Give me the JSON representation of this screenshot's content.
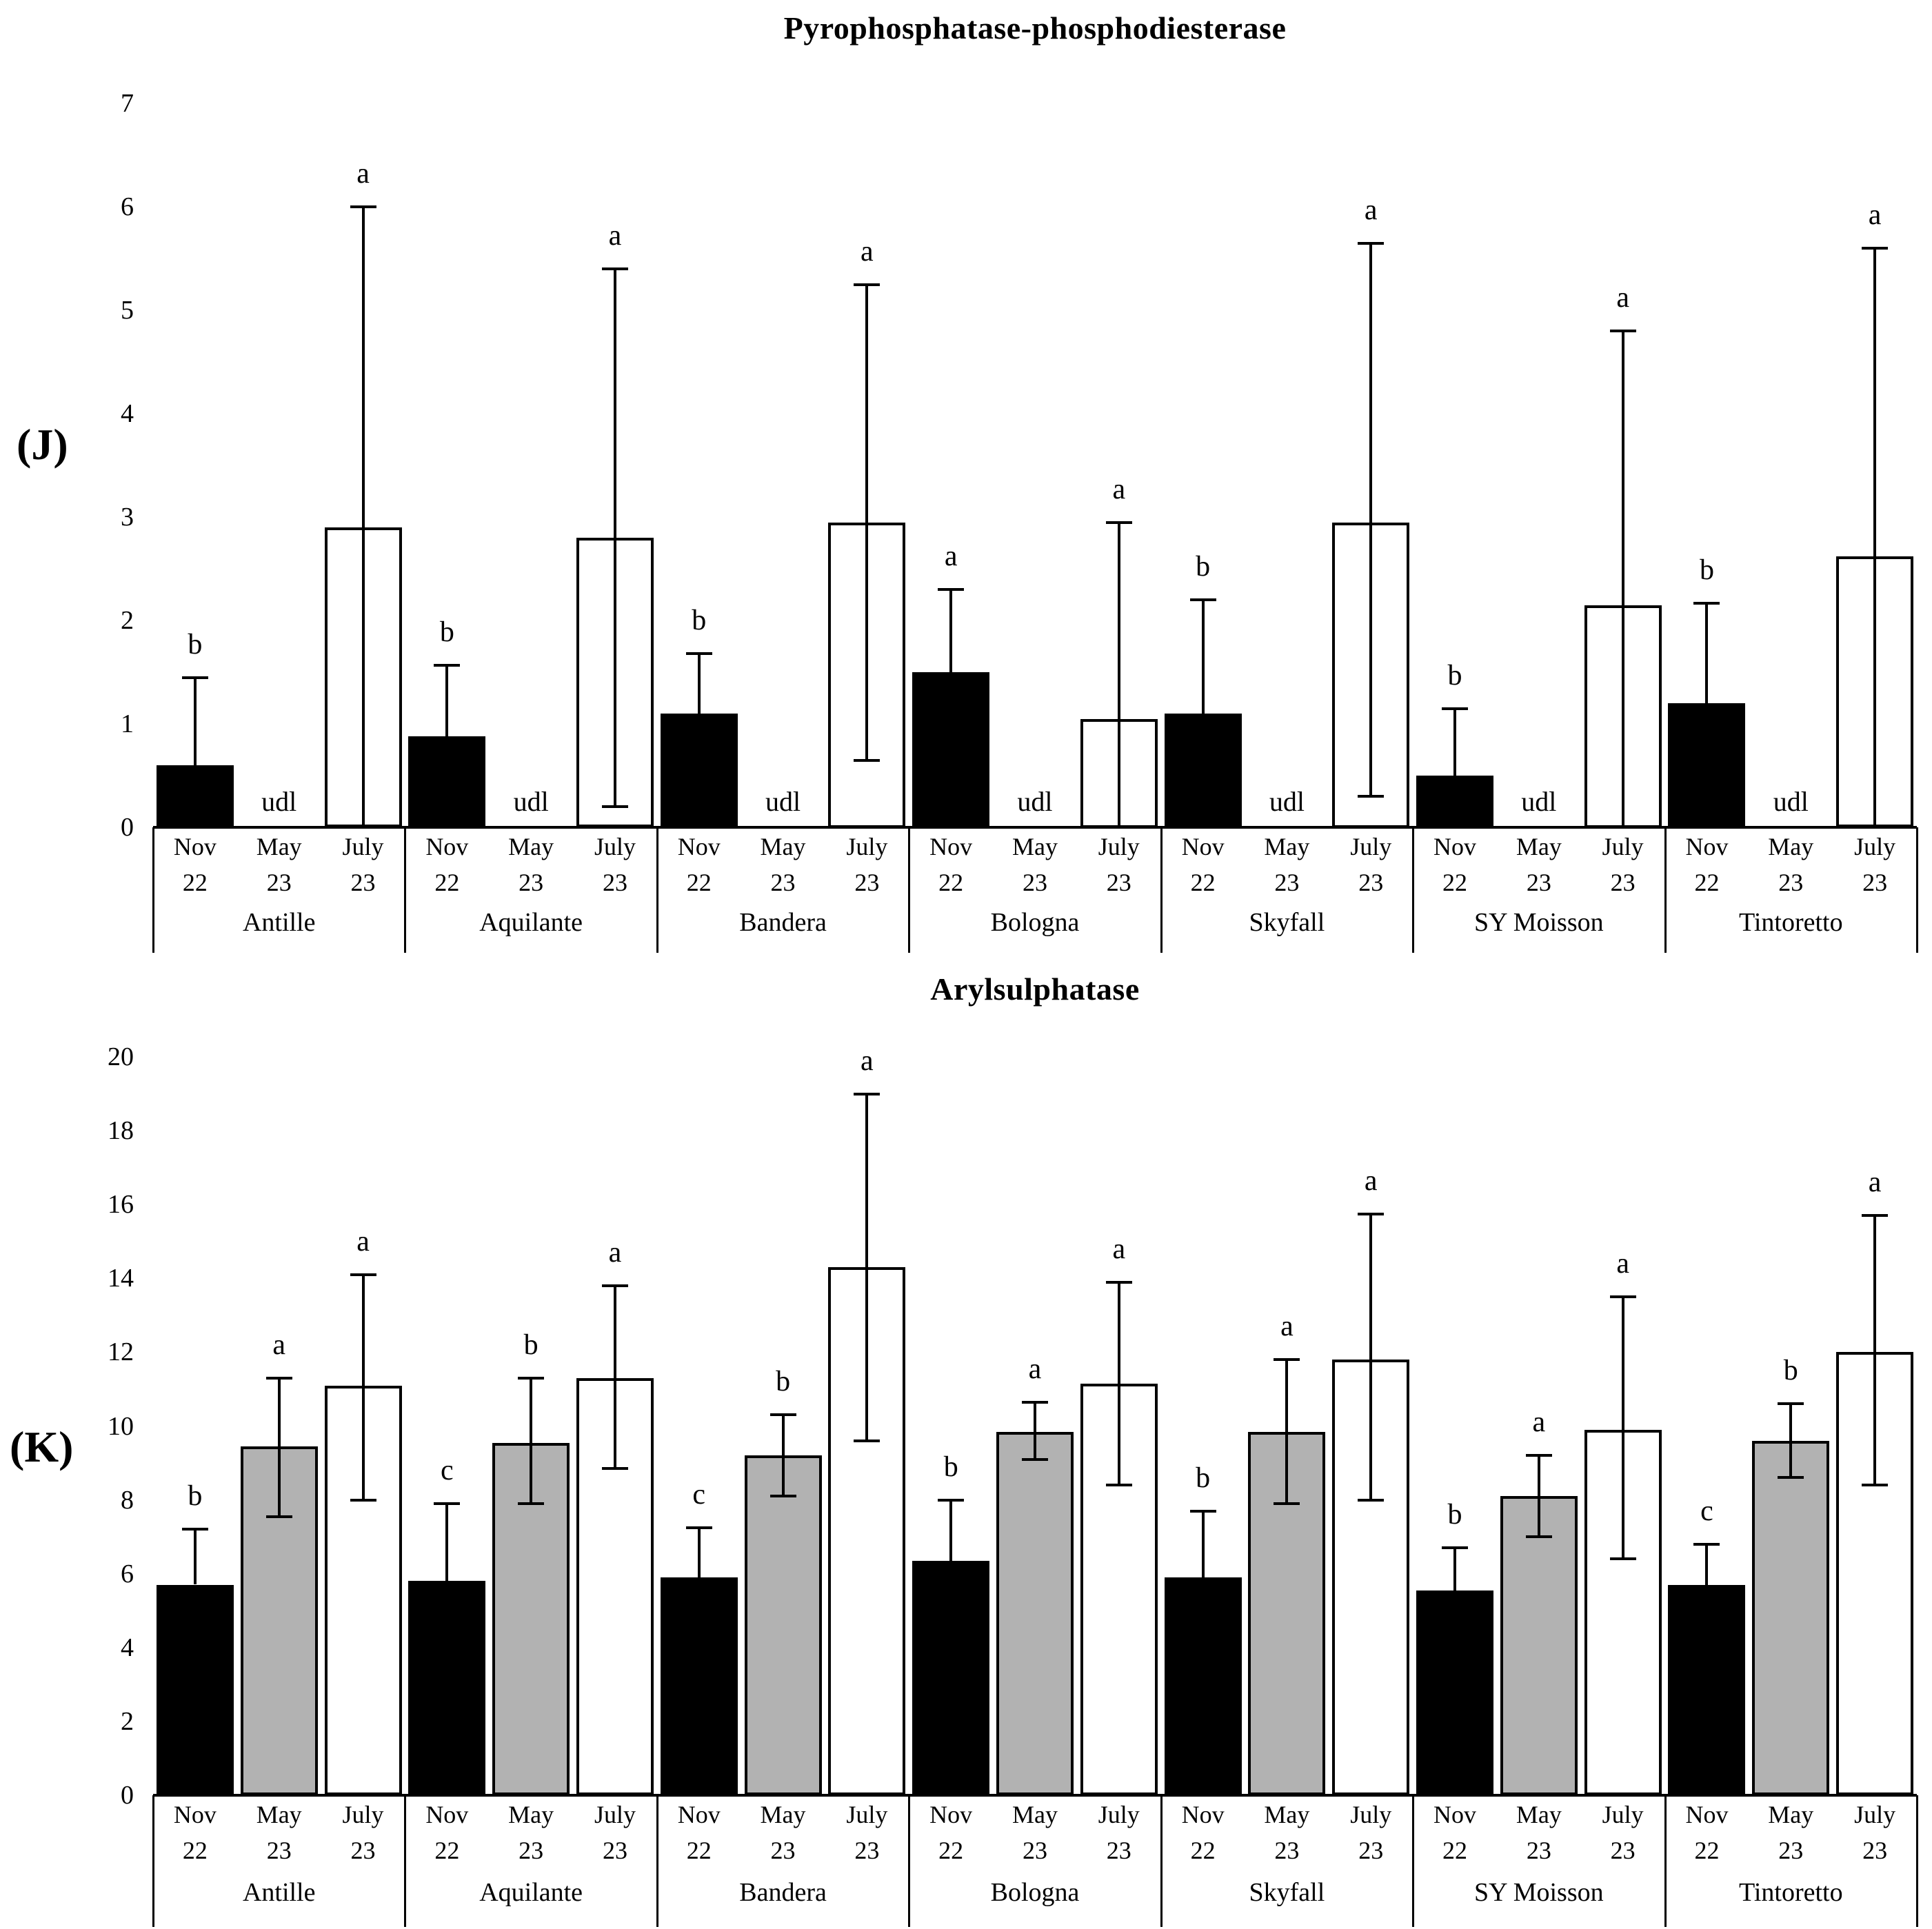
{
  "figure": {
    "background": "#ffffff",
    "ink_color": "#000000",
    "bar_fills": {
      "nov": "#000000",
      "may": "#b2b2b2",
      "july": "#ffffff"
    },
    "udl_label": "udl"
  },
  "months": [
    {
      "line1": "Nov",
      "line2": "22"
    },
    {
      "line1": "May",
      "line2": "23"
    },
    {
      "line1": "July",
      "line2": "23"
    }
  ],
  "cultivars": [
    "Antille",
    "Aquilante",
    "Bandera",
    "Bologna",
    "Skyfall",
    "SY Moisson",
    "Tintoretto"
  ],
  "chart_data": [
    {
      "id": "J",
      "type": "bar",
      "panel_label": "(J)",
      "title": "Pyrophosphatase-phosphodiesterase",
      "xlabel": "",
      "ylabel": "",
      "ylim": [
        0,
        7
      ],
      "yticks": [
        0,
        1,
        2,
        3,
        4,
        5,
        6,
        7
      ],
      "grid": false,
      "legend": "none",
      "series_months": [
        "Nov 22",
        "May 23",
        "July 23"
      ],
      "groups": [
        {
          "cultivar": "Antille",
          "bars": [
            {
              "month": "Nov 22",
              "value": 0.6,
              "err_hi": 1.45,
              "err_lo": null,
              "lo_cap": false,
              "letter": "b"
            },
            {
              "month": "May 23",
              "udl": true
            },
            {
              "month": "July 23",
              "value": 2.9,
              "err_hi": 6.0,
              "err_lo": 0.0,
              "lo_cap": false,
              "letter": "a"
            }
          ]
        },
        {
          "cultivar": "Aquilante",
          "bars": [
            {
              "month": "Nov 22",
              "value": 0.88,
              "err_hi": 1.57,
              "err_lo": null,
              "lo_cap": false,
              "letter": "b"
            },
            {
              "month": "May 23",
              "udl": true
            },
            {
              "month": "July 23",
              "value": 2.8,
              "err_hi": 5.4,
              "err_lo": 0.2,
              "lo_cap": true,
              "letter": "a"
            }
          ]
        },
        {
          "cultivar": "Bandera",
          "bars": [
            {
              "month": "Nov 22",
              "value": 1.1,
              "err_hi": 1.68,
              "err_lo": null,
              "lo_cap": false,
              "letter": "b"
            },
            {
              "month": "May 23",
              "udl": true
            },
            {
              "month": "July 23",
              "value": 2.95,
              "err_hi": 5.25,
              "err_lo": 0.65,
              "lo_cap": true,
              "letter": "a"
            }
          ]
        },
        {
          "cultivar": "Bologna",
          "bars": [
            {
              "month": "Nov 22",
              "value": 1.5,
              "err_hi": 2.3,
              "err_lo": null,
              "lo_cap": false,
              "letter": "a"
            },
            {
              "month": "May 23",
              "udl": true
            },
            {
              "month": "July 23",
              "value": 1.05,
              "err_hi": 2.95,
              "err_lo": 0.0,
              "lo_cap": false,
              "letter": "a"
            }
          ]
        },
        {
          "cultivar": "Skyfall",
          "bars": [
            {
              "month": "Nov 22",
              "value": 1.1,
              "err_hi": 2.2,
              "err_lo": null,
              "lo_cap": false,
              "letter": "b"
            },
            {
              "month": "May 23",
              "udl": true
            },
            {
              "month": "July 23",
              "value": 2.95,
              "err_hi": 5.65,
              "err_lo": 0.3,
              "lo_cap": true,
              "letter": "a"
            }
          ]
        },
        {
          "cultivar": "SY Moisson",
          "bars": [
            {
              "month": "Nov 22",
              "value": 0.5,
              "err_hi": 1.15,
              "err_lo": null,
              "lo_cap": false,
              "letter": "b"
            },
            {
              "month": "May 23",
              "udl": true
            },
            {
              "month": "July 23",
              "value": 2.15,
              "err_hi": 4.8,
              "err_lo": 0.0,
              "lo_cap": false,
              "letter": "a"
            }
          ]
        },
        {
          "cultivar": "Tintoretto",
          "bars": [
            {
              "month": "Nov 22",
              "value": 1.2,
              "err_hi": 2.17,
              "err_lo": null,
              "lo_cap": false,
              "letter": "b"
            },
            {
              "month": "May 23",
              "udl": true
            },
            {
              "month": "July 23",
              "value": 2.62,
              "err_hi": 5.6,
              "err_lo": 0.0,
              "lo_cap": false,
              "letter": "a"
            }
          ]
        }
      ]
    },
    {
      "id": "K",
      "type": "bar",
      "panel_label": "(K)",
      "title": "Arylsulphatase",
      "xlabel": "",
      "ylabel": "",
      "ylim": [
        0,
        20
      ],
      "yticks": [
        0,
        2,
        4,
        6,
        8,
        10,
        12,
        14,
        16,
        18,
        20
      ],
      "grid": false,
      "legend": "none",
      "series_months": [
        "Nov 22",
        "May 23",
        "July 23"
      ],
      "groups": [
        {
          "cultivar": "Antille",
          "bars": [
            {
              "month": "Nov 22",
              "value": 5.7,
              "err_hi": 7.2,
              "err_lo": null,
              "lo_cap": false,
              "letter": "b"
            },
            {
              "month": "May 23",
              "value": 9.45,
              "err_hi": 11.3,
              "err_lo": 7.55,
              "lo_cap": true,
              "letter": "a"
            },
            {
              "month": "July 23",
              "value": 11.1,
              "err_hi": 14.1,
              "err_lo": 8.0,
              "lo_cap": true,
              "letter": "a"
            }
          ]
        },
        {
          "cultivar": "Aquilante",
          "bars": [
            {
              "month": "Nov 22",
              "value": 5.8,
              "err_hi": 7.9,
              "err_lo": null,
              "lo_cap": false,
              "letter": "c"
            },
            {
              "month": "May 23",
              "value": 9.55,
              "err_hi": 11.3,
              "err_lo": 7.9,
              "lo_cap": true,
              "letter": "b"
            },
            {
              "month": "July 23",
              "value": 11.3,
              "err_hi": 13.8,
              "err_lo": 8.85,
              "lo_cap": true,
              "letter": "a"
            }
          ]
        },
        {
          "cultivar": "Bandera",
          "bars": [
            {
              "month": "Nov 22",
              "value": 5.9,
              "err_hi": 7.25,
              "err_lo": null,
              "lo_cap": false,
              "letter": "c"
            },
            {
              "month": "May 23",
              "value": 9.2,
              "err_hi": 10.3,
              "err_lo": 8.1,
              "lo_cap": true,
              "letter": "b"
            },
            {
              "month": "July 23",
              "value": 14.3,
              "err_hi": 19.0,
              "err_lo": 9.6,
              "lo_cap": true,
              "letter": "a"
            }
          ]
        },
        {
          "cultivar": "Bologna",
          "bars": [
            {
              "month": "Nov 22",
              "value": 6.35,
              "err_hi": 8.0,
              "err_lo": null,
              "lo_cap": false,
              "letter": "b"
            },
            {
              "month": "May 23",
              "value": 9.85,
              "err_hi": 10.65,
              "err_lo": 9.1,
              "lo_cap": true,
              "letter": "a"
            },
            {
              "month": "July 23",
              "value": 11.15,
              "err_hi": 13.9,
              "err_lo": 8.4,
              "lo_cap": true,
              "letter": "a"
            }
          ]
        },
        {
          "cultivar": "Skyfall",
          "bars": [
            {
              "month": "Nov 22",
              "value": 5.9,
              "err_hi": 7.7,
              "err_lo": null,
              "lo_cap": false,
              "letter": "b"
            },
            {
              "month": "May 23",
              "value": 9.85,
              "err_hi": 11.8,
              "err_lo": 7.9,
              "lo_cap": true,
              "letter": "a"
            },
            {
              "month": "July 23",
              "value": 11.8,
              "err_hi": 15.75,
              "err_lo": 8.0,
              "lo_cap": true,
              "letter": "a"
            }
          ]
        },
        {
          "cultivar": "SY Moisson",
          "bars": [
            {
              "month": "Nov 22",
              "value": 5.55,
              "err_hi": 6.7,
              "err_lo": null,
              "lo_cap": false,
              "letter": "b"
            },
            {
              "month": "May 23",
              "value": 8.1,
              "err_hi": 9.2,
              "err_lo": 7.0,
              "lo_cap": true,
              "letter": "a"
            },
            {
              "month": "July 23",
              "value": 9.9,
              "err_hi": 13.5,
              "err_lo": 6.4,
              "lo_cap": true,
              "letter": "a"
            }
          ]
        },
        {
          "cultivar": "Tintoretto",
          "bars": [
            {
              "month": "Nov 22",
              "value": 5.7,
              "err_hi": 6.8,
              "err_lo": null,
              "lo_cap": false,
              "letter": "c"
            },
            {
              "month": "May 23",
              "value": 9.6,
              "err_hi": 10.6,
              "err_lo": 8.6,
              "lo_cap": true,
              "letter": "b"
            },
            {
              "month": "July 23",
              "value": 12.0,
              "err_hi": 15.7,
              "err_lo": 8.4,
              "lo_cap": true,
              "letter": "a"
            }
          ]
        }
      ]
    }
  ]
}
